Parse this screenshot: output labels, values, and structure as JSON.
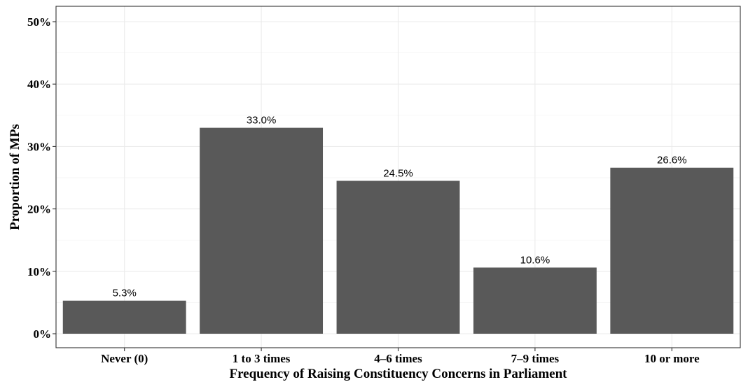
{
  "chart_data": {
    "type": "bar",
    "categories": [
      "Never (0)",
      "1 to 3 times",
      "4–6 times",
      "7–9 times",
      "10 or more"
    ],
    "values": [
      5.3,
      33.0,
      24.5,
      10.6,
      26.6
    ],
    "data_labels": [
      "5.3%",
      "33.0%",
      "24.5%",
      "10.6%",
      "26.6%"
    ],
    "title": "",
    "xlabel": "Frequency of Raising Constituency Concerns in Parliament",
    "ylabel": "Proportion of MPs",
    "ylim": [
      0,
      52
    ],
    "y_ticks": [
      0,
      10,
      20,
      30,
      40,
      50
    ],
    "y_tick_labels": [
      "0%",
      "10%",
      "20%",
      "30%",
      "40%",
      "50%"
    ],
    "grid": true,
    "legend": "none",
    "bar_color": "#595959",
    "background_color": "#ffffff",
    "grid_color": "#ebebeb"
  }
}
